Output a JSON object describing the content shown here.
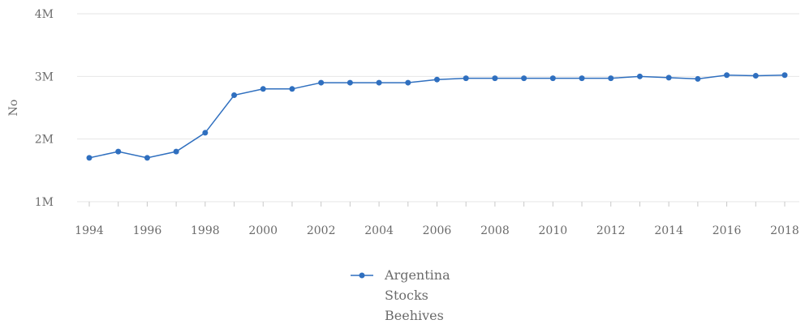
{
  "chart_data": {
    "type": "line",
    "title": "",
    "xlabel": "",
    "ylabel": "No",
    "x": [
      1994,
      1995,
      1996,
      1997,
      1998,
      1999,
      2000,
      2001,
      2002,
      2003,
      2004,
      2005,
      2006,
      2007,
      2008,
      2009,
      2010,
      2011,
      2012,
      2013,
      2014,
      2015,
      2016,
      2017,
      2018
    ],
    "series": [
      {
        "name": "Argentina",
        "values": [
          1700000,
          1800000,
          1700000,
          1800000,
          2100000,
          2700000,
          2800000,
          2800000,
          2900000,
          2900000,
          2900000,
          2900000,
          2950000,
          2970000,
          2970000,
          2970000,
          2970000,
          2970000,
          2970000,
          3000000,
          2980000,
          2960000,
          3020000,
          3010000,
          3020000
        ],
        "color": "#2f6fbf"
      }
    ],
    "x_ticks": [
      "1994",
      "1996",
      "1998",
      "2000",
      "2002",
      "2004",
      "2006",
      "2008",
      "2010",
      "2012",
      "2014",
      "2016",
      "2018"
    ],
    "y_ticks": [
      {
        "value": 1000000,
        "label": "1M"
      },
      {
        "value": 2000000,
        "label": "2M"
      },
      {
        "value": 3000000,
        "label": "3M"
      },
      {
        "value": 4000000,
        "label": "4M"
      }
    ],
    "xlim": [
      1994,
      2018
    ],
    "ylim": [
      1000000,
      4000000
    ],
    "grid": true,
    "legend": {
      "position": "bottom-center",
      "lines": [
        "Argentina",
        "Stocks",
        "Beehives"
      ]
    }
  }
}
